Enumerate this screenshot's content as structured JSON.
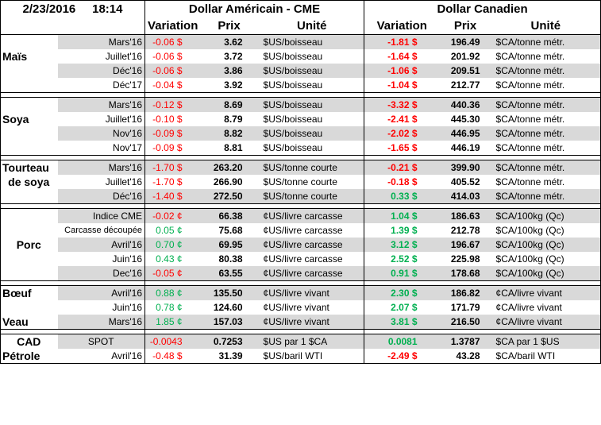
{
  "header": {
    "date": "2/23/2016",
    "time": "18:14",
    "us_title": "Dollar Américain - CME",
    "ca_title": "Dollar Canadien",
    "col_variation": "Variation",
    "col_prix": "Prix",
    "col_unite": "Unité"
  },
  "groups": [
    {
      "product": "Maïs",
      "rows": [
        {
          "contract": "Mars'16",
          "us_var": "-0.06 $",
          "us_prix": "3.62",
          "us_unit": "$US/boisseau",
          "ca_var": "-1.81 $",
          "ca_prix": "196.49",
          "ca_unit": "$CA/tonne métr."
        },
        {
          "contract": "Juillet'16",
          "us_var": "-0.06 $",
          "us_prix": "3.72",
          "us_unit": "$US/boisseau",
          "ca_var": "-1.64 $",
          "ca_prix": "201.92",
          "ca_unit": "$CA/tonne métr."
        },
        {
          "contract": "Déc'16",
          "us_var": "-0.06 $",
          "us_prix": "3.86",
          "us_unit": "$US/boisseau",
          "ca_var": "-1.06 $",
          "ca_prix": "209.51",
          "ca_unit": "$CA/tonne métr."
        },
        {
          "contract": "Déc'17",
          "us_var": "-0.04 $",
          "us_prix": "3.92",
          "us_unit": "$US/boisseau",
          "ca_var": "-1.04 $",
          "ca_prix": "212.77",
          "ca_unit": "$CA/tonne métr."
        }
      ]
    },
    {
      "product": "Soya",
      "rows": [
        {
          "contract": "Mars'16",
          "us_var": "-0.12 $",
          "us_prix": "8.69",
          "us_unit": "$US/boisseau",
          "ca_var": "-3.32 $",
          "ca_prix": "440.36",
          "ca_unit": "$CA/tonne métr."
        },
        {
          "contract": "Juillet'16",
          "us_var": "-0.10 $",
          "us_prix": "8.79",
          "us_unit": "$US/boisseau",
          "ca_var": "-2.41 $",
          "ca_prix": "445.30",
          "ca_unit": "$CA/tonne métr."
        },
        {
          "contract": "Nov'16",
          "us_var": "-0.09 $",
          "us_prix": "8.82",
          "us_unit": "$US/boisseau",
          "ca_var": "-2.02 $",
          "ca_prix": "446.95",
          "ca_unit": "$CA/tonne métr."
        },
        {
          "contract": "Nov'17",
          "us_var": "-0.09 $",
          "us_prix": "8.81",
          "us_unit": "$US/boisseau",
          "ca_var": "-1.65 $",
          "ca_prix": "446.19",
          "ca_unit": "$CA/tonne métr."
        }
      ]
    },
    {
      "product_line1": "Tourteau",
      "product_line2": "de soya",
      "rows": [
        {
          "contract": "Mars'16",
          "us_var": "-1.70 $",
          "us_prix": "263.20",
          "us_unit": "$US/tonne courte",
          "ca_var": "-0.21 $",
          "ca_prix": "399.90",
          "ca_unit": "$CA/tonne métr."
        },
        {
          "contract": "Juillet'16",
          "us_var": "-1.70 $",
          "us_prix": "266.90",
          "us_unit": "$US/tonne courte",
          "ca_var": "-0.18 $",
          "ca_prix": "405.52",
          "ca_unit": "$CA/tonne métr."
        },
        {
          "contract": "Déc'16",
          "us_var": "-1.40 $",
          "us_prix": "272.50",
          "us_unit": "$US/tonne courte",
          "ca_var": "0.33 $",
          "ca_prix": "414.03",
          "ca_unit": "$CA/tonne métr."
        }
      ]
    },
    {
      "product": "Porc",
      "rows": [
        {
          "contract": "Indice CME",
          "us_var": "-0.02 ¢",
          "us_prix": "66.38",
          "us_unit": "¢US/livre carcasse",
          "ca_var": "1.04 $",
          "ca_prix": "186.63",
          "ca_unit": "$CA/100kg (Qc)"
        },
        {
          "contract": "Carcasse découpée",
          "us_var": "0.05 ¢",
          "us_prix": "75.68",
          "us_unit": "¢US/livre carcasse",
          "ca_var": "1.39 $",
          "ca_prix": "212.78",
          "ca_unit": "$CA/100kg (Qc)"
        },
        {
          "contract": "Avril'16",
          "us_var": "0.70 ¢",
          "us_prix": "69.95",
          "us_unit": "¢US/livre carcasse",
          "ca_var": "3.12 $",
          "ca_prix": "196.67",
          "ca_unit": "$CA/100kg (Qc)"
        },
        {
          "contract": "Juin'16",
          "us_var": "0.43 ¢",
          "us_prix": "80.38",
          "us_unit": "¢US/livre carcasse",
          "ca_var": "2.52 $",
          "ca_prix": "225.98",
          "ca_unit": "$CA/100kg (Qc)"
        },
        {
          "contract": "Dec'16",
          "us_var": "-0.05 ¢",
          "us_prix": "63.55",
          "us_unit": "¢US/livre carcasse",
          "ca_var": "0.91 $",
          "ca_prix": "178.68",
          "ca_unit": "$CA/100kg (Qc)"
        }
      ]
    },
    {
      "product_boeuf": "Bœuf",
      "product_veau": "Veau",
      "rows": [
        {
          "contract": "Avril'16",
          "us_var": "0.88 ¢",
          "us_prix": "135.50",
          "us_unit": "¢US/livre vivant",
          "ca_var": "2.30 $",
          "ca_prix": "186.82",
          "ca_unit": "¢CA/livre vivant"
        },
        {
          "contract": "Juin'16",
          "us_var": "0.78 ¢",
          "us_prix": "124.60",
          "us_unit": "¢US/livre vivant",
          "ca_var": "2.07 $",
          "ca_prix": "171.79",
          "ca_unit": "¢CA/livre vivant"
        },
        {
          "contract": "Mars'16",
          "us_var": "1.85 ¢",
          "us_prix": "157.03",
          "us_unit": "¢US/livre vivant",
          "ca_var": "3.81 $",
          "ca_prix": "216.50",
          "ca_unit": "¢CA/livre vivant"
        }
      ]
    },
    {
      "rows": [
        {
          "product": "CAD",
          "contract": "SPOT",
          "us_var": "-0.0043",
          "us_prix": "0.7253",
          "us_unit": "$US par 1 $CA",
          "ca_var": "0.0081",
          "ca_prix": "1.3787",
          "ca_unit": "$CA par 1 $US"
        },
        {
          "product": "Pétrole",
          "contract": "Avril'16",
          "us_var": "-0.48 $",
          "us_prix": "31.39",
          "us_unit": "$US/baril WTI",
          "ca_var": "-2.49 $",
          "ca_prix": "43.28",
          "ca_unit": "$CA/baril WTI"
        }
      ]
    }
  ],
  "colors": {
    "negative": "#ff0000",
    "positive": "#00b050",
    "shade": "#d9d9d9"
  }
}
